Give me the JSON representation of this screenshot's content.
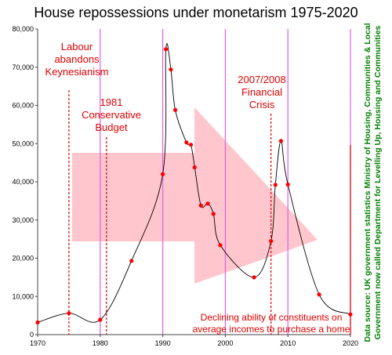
{
  "chart_data": {
    "type": "line",
    "title": "House repossessions under monetarism 1975-2020",
    "xlim": [
      1970,
      2020
    ],
    "ylim": [
      0,
      80000
    ],
    "x_ticks": [
      1970,
      1980,
      1990,
      2000,
      2010,
      2020
    ],
    "y_ticks": [
      0,
      10000,
      20000,
      30000,
      40000,
      50000,
      60000,
      70000,
      80000
    ],
    "y_tick_labels": [
      "0",
      "10,000",
      "20,000",
      "30,000",
      "40,000",
      "50,000",
      "60,000",
      "70,000",
      "80,000"
    ],
    "grid": false,
    "series": [
      {
        "points": [
          {
            "x": 1970,
            "y": 3200
          },
          {
            "x": 1975,
            "y": 5600
          },
          {
            "x": 1980,
            "y": 3900
          },
          {
            "x": 1985,
            "y": 19300
          },
          {
            "x": 1990,
            "y": 42000
          },
          {
            "x": 1990.5,
            "y": 74700
          },
          {
            "x": 1991.3,
            "y": 69400
          },
          {
            "x": 1992,
            "y": 58800
          },
          {
            "x": 1993.8,
            "y": 50300
          },
          {
            "x": 1994.5,
            "y": 49700
          },
          {
            "x": 1995.1,
            "y": 43800
          },
          {
            "x": 1996.1,
            "y": 33800
          },
          {
            "x": 1997.2,
            "y": 34300
          },
          {
            "x": 1998.1,
            "y": 31600
          },
          {
            "x": 1999.2,
            "y": 23400
          },
          {
            "x": 2004.6,
            "y": 15000
          },
          {
            "x": 2007.3,
            "y": 24500
          },
          {
            "x": 2008,
            "y": 39200
          },
          {
            "x": 2008.9,
            "y": 50700
          },
          {
            "x": 2010,
            "y": 39300
          },
          {
            "x": 2015,
            "y": 10500
          },
          {
            "x": 2020,
            "y": 5300
          }
        ],
        "color": "#ff0000",
        "line_color": "#000000"
      }
    ],
    "annotations": [
      {
        "id": "labour",
        "lines": [
          "Labour",
          "abandons",
          "Keynesianism"
        ],
        "x": 1975
      },
      {
        "id": "budget",
        "lines": [
          "1981",
          "Conservative",
          "Budget"
        ],
        "x": 1981
      },
      {
        "id": "crisis",
        "lines": [
          "2007/2008",
          "Financial",
          "Crisis"
        ],
        "x": 2007.3
      },
      {
        "id": "declining",
        "lines": [
          "Declining ability of constituents on",
          "average incomes to purchase a home"
        ]
      }
    ],
    "source_lines": [
      "Data source: UK government statistics Ministry of Housing, Communities & Local",
      "Government now called Department for Levelling Up, Housing and Communities"
    ],
    "vertical_lines_magenta": [
      1980,
      1990,
      2000,
      2010,
      2020
    ],
    "colors": {
      "markers": "#ff0000",
      "annotation_text": "#e00000",
      "annotation_lines": "#e00000",
      "arrow": "#ffc0c8",
      "vertical_lines": "#e060e0",
      "source_text": "#008000"
    }
  }
}
